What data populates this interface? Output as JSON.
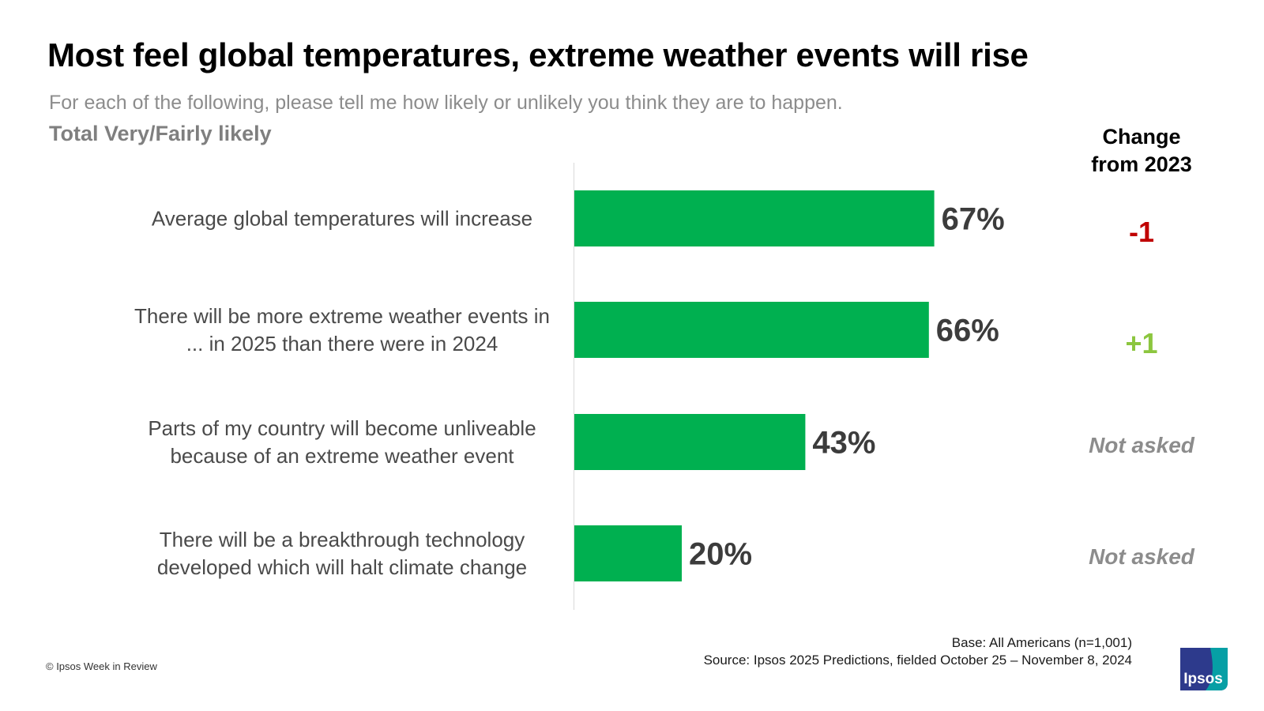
{
  "header": {
    "title": "Most feel global temperatures, extreme weather events will rise",
    "subtitle": "For each of the following, please tell me how likely or unlikely you think they are to happen.",
    "measure": "Total Very/Fairly likely",
    "change_header_line1": "Change",
    "change_header_line2": "from 2023"
  },
  "chart_data": {
    "type": "bar",
    "orientation": "horizontal",
    "categories": [
      [
        "Average global temperatures will increase"
      ],
      [
        "There will be more extreme weather events in",
        "... in 2025 than there were in 2024"
      ],
      [
        "Parts of my country will become unliveable",
        "because of an extreme weather event"
      ],
      [
        "There will be a breakthrough technology",
        "developed which will halt climate change"
      ]
    ],
    "values": [
      67,
      66,
      43,
      20
    ],
    "value_labels": [
      "67%",
      "66%",
      "43%",
      "20%"
    ],
    "unit": "%",
    "xlim": [
      0,
      100
    ],
    "bar_color": "#00b050",
    "changes": [
      {
        "text": "-1",
        "kind": "negative"
      },
      {
        "text": "+1",
        "kind": "positive"
      },
      {
        "text": "Not asked",
        "kind": "na"
      },
      {
        "text": "Not asked",
        "kind": "na"
      }
    ],
    "change_colors": {
      "negative": "#c00000",
      "positive": "#8cc63f",
      "na": "#8c8c8c"
    }
  },
  "footer": {
    "base": "Base: All Americans (n=1,001)",
    "source": "Source: Ipsos 2025 Predictions, fielded October 25 – November 8, 2024",
    "copyright": "© Ipsos Week in Review",
    "logo_text": "Ipsos",
    "logo_color": "#2d3a8c",
    "logo_accent": "#00b2a9"
  }
}
